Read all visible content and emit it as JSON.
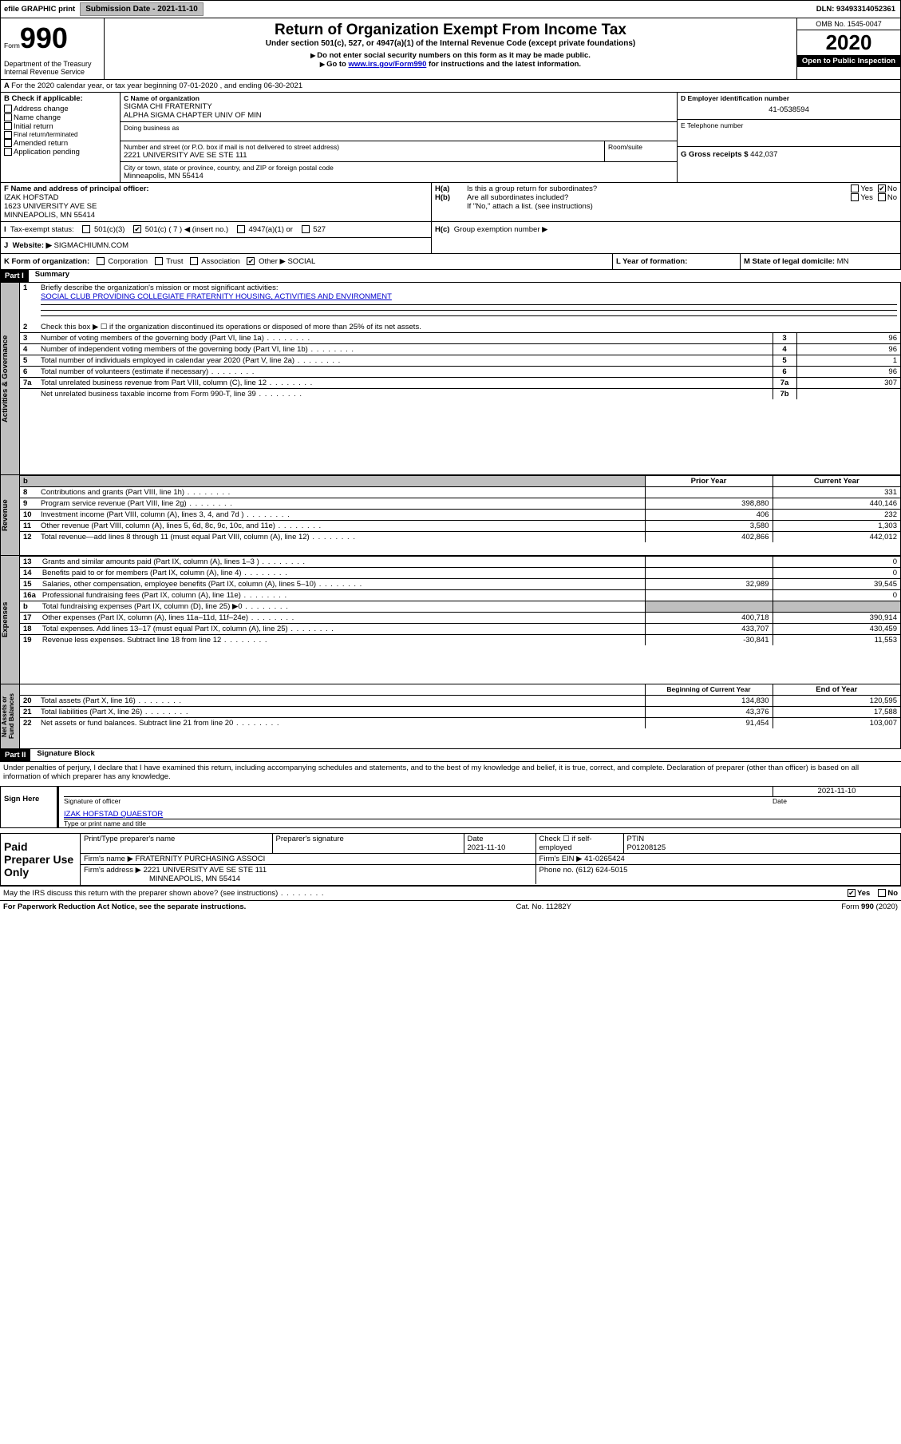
{
  "top": {
    "efile": "efile GRAPHIC print",
    "submission_label": "Submission Date - 2021-11-10",
    "dln_label": "DLN: 93493314052361"
  },
  "hdr": {
    "form_prefix": "Form",
    "form_no": "990",
    "dept": "Department of the Treasury\nInternal Revenue Service",
    "title": "Return of Organization Exempt From Income Tax",
    "subtitle": "Under section 501(c), 527, or 4947(a)(1) of the Internal Revenue Code (except private foundations)",
    "note1": "Do not enter social security numbers on this form as it may be made public.",
    "note2_pre": "Go to ",
    "note2_link": "www.irs.gov/Form990",
    "note2_post": " for instructions and the latest information.",
    "omb": "OMB No. 1545-0047",
    "year": "2020",
    "open": "Open to Public Inspection"
  },
  "a_line": "For the 2020 calendar year, or tax year beginning 07-01-2020    , and ending 06-30-2021",
  "b": {
    "hdr": "B Check if applicable:",
    "opts": [
      "Address change",
      "Name change",
      "Initial return",
      "Final return/terminated",
      "Amended return",
      "Application pending"
    ]
  },
  "c": {
    "name_lbl": "C Name of organization",
    "name1": "SIGMA CHI FRATERNITY",
    "name2": "ALPHA SIGMA CHAPTER UNIV OF MIN",
    "dba": "Doing business as",
    "street_lbl": "Number and street (or P.O. box if mail is not delivered to street address)",
    "room_lbl": "Room/suite",
    "street": "2221 UNIVERSITY AVE SE STE 111",
    "city_lbl": "City or town, state or province, country, and ZIP or foreign postal code",
    "city": "Minneapolis, MN  55414"
  },
  "d": {
    "lbl": "D Employer identification number",
    "val": "41-0538594"
  },
  "e": {
    "lbl": "E Telephone number"
  },
  "g": {
    "lbl": "G Gross receipts $",
    "val": "442,037"
  },
  "f": {
    "lbl": "F  Name and address of principal officer:",
    "name": "IZAK HOFSTAD",
    "addr1": "1623 UNIVERSITY AVE SE",
    "addr2": "MINNEAPOLIS, MN  55414"
  },
  "h": {
    "a": "Is this a group return for subordinates?",
    "b": "Are all subordinates included?",
    "note": "If \"No,\" attach a list. (see instructions)",
    "c": "Group exemption number ▶"
  },
  "i": {
    "lbl": "Tax-exempt status:",
    "o1": "501(c)(3)",
    "o2": "501(c) ( 7 ) ◀ (insert no.)",
    "o3": "4947(a)(1) or",
    "o4": "527"
  },
  "j": {
    "lbl": "Website: ▶",
    "val": "SIGMACHIUMN.COM"
  },
  "k": {
    "lbl": "K Form of organization:",
    "opts": [
      "Corporation",
      "Trust",
      "Association",
      "Other ▶"
    ],
    "other_val": "SOCIAL"
  },
  "l": {
    "lbl": "L Year of formation:"
  },
  "m": {
    "lbl": "M State of legal domicile:",
    "val": "MN"
  },
  "part1": {
    "num": "Part I",
    "title": "Summary"
  },
  "s1": {
    "q1": "Briefly describe the organization's mission or most significant activities:",
    "a1": "SOCIAL CLUB PROVIDING COLLEGIATE FRATERNITY HOUSING, ACTIVITIES AND ENVIRONMENT",
    "q2": "Check this box ▶ ☐  if the organization discontinued its operations or disposed of more than 25% of its net assets."
  },
  "sidebars": [
    "Activities & Governance",
    "Revenue",
    "Expenses",
    "Net Assets or Fund Balances"
  ],
  "gov_rows": [
    {
      "n": "3",
      "t": "Number of voting members of the governing body (Part VI, line 1a)",
      "rn": "3",
      "v": "96"
    },
    {
      "n": "4",
      "t": "Number of independent voting members of the governing body (Part VI, line 1b)",
      "rn": "4",
      "v": "96"
    },
    {
      "n": "5",
      "t": "Total number of individuals employed in calendar year 2020 (Part V, line 2a)",
      "rn": "5",
      "v": "1"
    },
    {
      "n": "6",
      "t": "Total number of volunteers (estimate if necessary)",
      "rn": "6",
      "v": "96"
    },
    {
      "n": "7a",
      "t": "Total unrelated business revenue from Part VIII, column (C), line 12",
      "rn": "7a",
      "v": "307"
    },
    {
      "n": "",
      "t": "Net unrelated business taxable income from Form 990-T, line 39",
      "rn": "7b",
      "v": ""
    }
  ],
  "cols": {
    "b": "b",
    "py": "Prior Year",
    "cy": "Current Year",
    "boy": "Beginning of Current Year",
    "eoy": "End of Year"
  },
  "rev_rows": [
    {
      "n": "8",
      "t": "Contributions and grants (Part VIII, line 1h)",
      "py": "",
      "cy": "331"
    },
    {
      "n": "9",
      "t": "Program service revenue (Part VIII, line 2g)",
      "py": "398,880",
      "cy": "440,146"
    },
    {
      "n": "10",
      "t": "Investment income (Part VIII, column (A), lines 3, 4, and 7d )",
      "py": "406",
      "cy": "232"
    },
    {
      "n": "11",
      "t": "Other revenue (Part VIII, column (A), lines 5, 6d, 8c, 9c, 10c, and 11e)",
      "py": "3,580",
      "cy": "1,303"
    },
    {
      "n": "12",
      "t": "Total revenue—add lines 8 through 11 (must equal Part VIII, column (A), line 12)",
      "py": "402,866",
      "cy": "442,012"
    }
  ],
  "exp_rows": [
    {
      "n": "13",
      "t": "Grants and similar amounts paid (Part IX, column (A), lines 1–3 )",
      "py": "",
      "cy": "0"
    },
    {
      "n": "14",
      "t": "Benefits paid to or for members (Part IX, column (A), line 4)",
      "py": "",
      "cy": "0"
    },
    {
      "n": "15",
      "t": "Salaries, other compensation, employee benefits (Part IX, column (A), lines 5–10)",
      "py": "32,989",
      "cy": "39,545"
    },
    {
      "n": "16a",
      "t": "Professional fundraising fees (Part IX, column (A), line 11e)",
      "py": "",
      "cy": "0"
    },
    {
      "n": "b",
      "t": "Total fundraising expenses (Part IX, column (D), line 25) ▶0",
      "py": "GREY",
      "cy": "GREY"
    },
    {
      "n": "17",
      "t": "Other expenses (Part IX, column (A), lines 11a–11d, 11f–24e)",
      "py": "400,718",
      "cy": "390,914"
    },
    {
      "n": "18",
      "t": "Total expenses. Add lines 13–17 (must equal Part IX, column (A), line 25)",
      "py": "433,707",
      "cy": "430,459"
    },
    {
      "n": "19",
      "t": "Revenue less expenses. Subtract line 18 from line 12",
      "py": "-30,841",
      "cy": "11,553"
    }
  ],
  "na_rows": [
    {
      "n": "20",
      "t": "Total assets (Part X, line 16)",
      "py": "134,830",
      "cy": "120,595"
    },
    {
      "n": "21",
      "t": "Total liabilities (Part X, line 26)",
      "py": "43,376",
      "cy": "17,588"
    },
    {
      "n": "22",
      "t": "Net assets or fund balances. Subtract line 21 from line 20",
      "py": "91,454",
      "cy": "103,007"
    }
  ],
  "part2": {
    "num": "Part II",
    "title": "Signature Block"
  },
  "perjury": "Under penalties of perjury, I declare that I have examined this return, including accompanying schedules and statements, and to the best of my knowledge and belief, it is true, correct, and complete. Declaration of preparer (other than officer) is based on all information of which preparer has any knowledge.",
  "sign": {
    "here": "Sign Here",
    "sig_lbl": "Signature of officer",
    "date_lbl": "Date",
    "date": "2021-11-10",
    "name": "IZAK HOFSTAD QUAESTOR",
    "name_lbl": "Type or print name and title"
  },
  "paid": {
    "hdr": "Paid Preparer Use Only",
    "c1": "Print/Type preparer's name",
    "c2": "Preparer's signature",
    "c3": "Date",
    "c3v": "2021-11-10",
    "c4": "Check ☐ if self-employed",
    "c5": "PTIN",
    "c5v": "P01208125",
    "firm_lbl": "Firm's name   ▶",
    "firm": "FRATERNITY PURCHASING ASSOCI",
    "ein_lbl": "Firm's EIN ▶",
    "ein": "41-0265424",
    "addr_lbl": "Firm's address ▶",
    "addr1": "2221 UNIVERSITY AVE SE STE 111",
    "addr2": "MINNEAPOLIS, MN  55414",
    "phone_lbl": "Phone no.",
    "phone": "(612) 624-5015"
  },
  "discuss": "May the IRS discuss this return with the preparer shown above? (see instructions)",
  "foot": {
    "pra": "For Paperwork Reduction Act Notice, see the separate instructions.",
    "cat": "Cat. No. 11282Y",
    "form": "Form 990 (2020)"
  },
  "yn": {
    "yes": "Yes",
    "no": "No"
  }
}
